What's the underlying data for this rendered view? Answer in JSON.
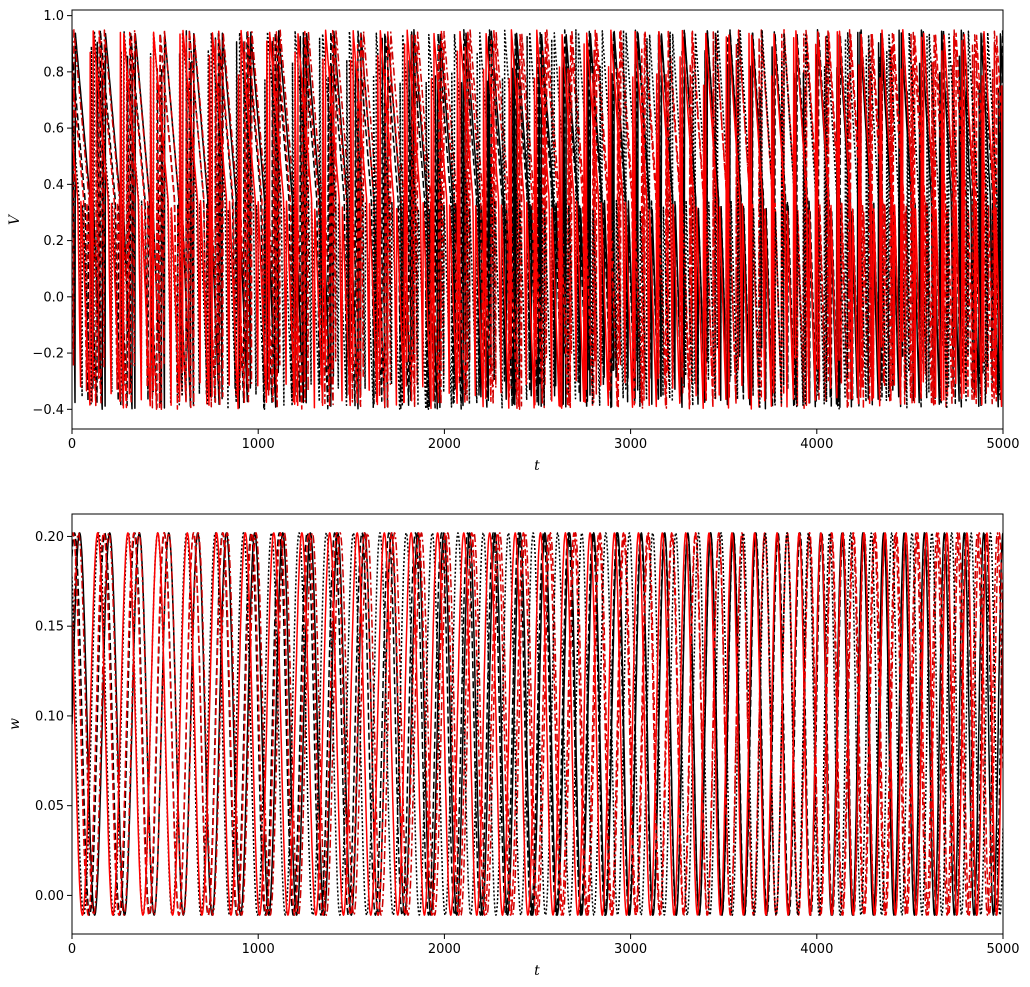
{
  "chart_data": [
    {
      "type": "line",
      "title": "",
      "xlabel": "t",
      "ylabel": "V",
      "xlim": [
        0,
        5000
      ],
      "ylim": [
        -0.47,
        1.02
      ],
      "xticks": [
        "0",
        "1000",
        "2000",
        "3000",
        "4000",
        "5000"
      ],
      "xtick_values": [
        0,
        1000,
        2000,
        3000,
        4000,
        5000
      ],
      "yticks": [
        "−0.4",
        "−0.2",
        "0.0",
        "0.2",
        "0.4",
        "0.6",
        "0.8",
        "1.0"
      ],
      "ytick_values": [
        -0.4,
        -0.2,
        0.0,
        0.2,
        0.4,
        0.6,
        0.8,
        1.0
      ],
      "grid": false,
      "signal": {
        "min": -0.4,
        "max": 0.95,
        "start": 0.95,
        "kind": "relaxation"
      },
      "series": [
        {
          "color": "#000000",
          "style": "solid",
          "period_start": 163,
          "period_end": 103,
          "phase": 0.0
        },
        {
          "color": "#cc0000",
          "style": "dashdot",
          "period_start": 165,
          "period_end": 106,
          "phase": 0.04
        },
        {
          "color": "#000000",
          "style": "dashed",
          "period_start": 164,
          "period_end": 104,
          "phase": 0.17
        },
        {
          "color": "#e60000",
          "style": "dashed",
          "period_start": 166,
          "period_end": 107,
          "phase": 0.22
        },
        {
          "color": "#000000",
          "style": "dotted",
          "period_start": 162,
          "period_end": 102,
          "phase": 0.36
        },
        {
          "color": "#ff0000",
          "style": "solid",
          "period_start": 165,
          "period_end": 105,
          "phase": 0.41
        }
      ]
    },
    {
      "type": "line",
      "title": "",
      "xlabel": "t",
      "ylabel": "w",
      "xlim": [
        0,
        5000
      ],
      "ylim": [
        -0.0215,
        0.2125
      ],
      "xticks": [
        "0",
        "1000",
        "2000",
        "3000",
        "4000",
        "5000"
      ],
      "xtick_values": [
        0,
        1000,
        2000,
        3000,
        4000,
        5000
      ],
      "yticks": [
        "0.00",
        "0.05",
        "0.10",
        "0.15",
        "0.20"
      ],
      "ytick_values": [
        0.0,
        0.05,
        0.1,
        0.15,
        0.2
      ],
      "grid": false,
      "signal": {
        "min": -0.011,
        "max": 0.202,
        "start": 0.1,
        "kind": "smooth"
      },
      "series": [
        {
          "color": "#000000",
          "style": "solid",
          "period_start": 163,
          "period_end": 103,
          "phase": 0.0
        },
        {
          "color": "#cc0000",
          "style": "dashdot",
          "period_start": 165,
          "period_end": 106,
          "phase": 0.04
        },
        {
          "color": "#000000",
          "style": "dashed",
          "period_start": 164,
          "period_end": 104,
          "phase": 0.17
        },
        {
          "color": "#e60000",
          "style": "dashed",
          "period_start": 166,
          "period_end": 107,
          "phase": 0.22
        },
        {
          "color": "#000000",
          "style": "dotted",
          "period_start": 162,
          "period_end": 102,
          "phase": 0.36
        },
        {
          "color": "#ff0000",
          "style": "solid",
          "period_start": 165,
          "period_end": 105,
          "phase": 0.41
        }
      ]
    }
  ]
}
